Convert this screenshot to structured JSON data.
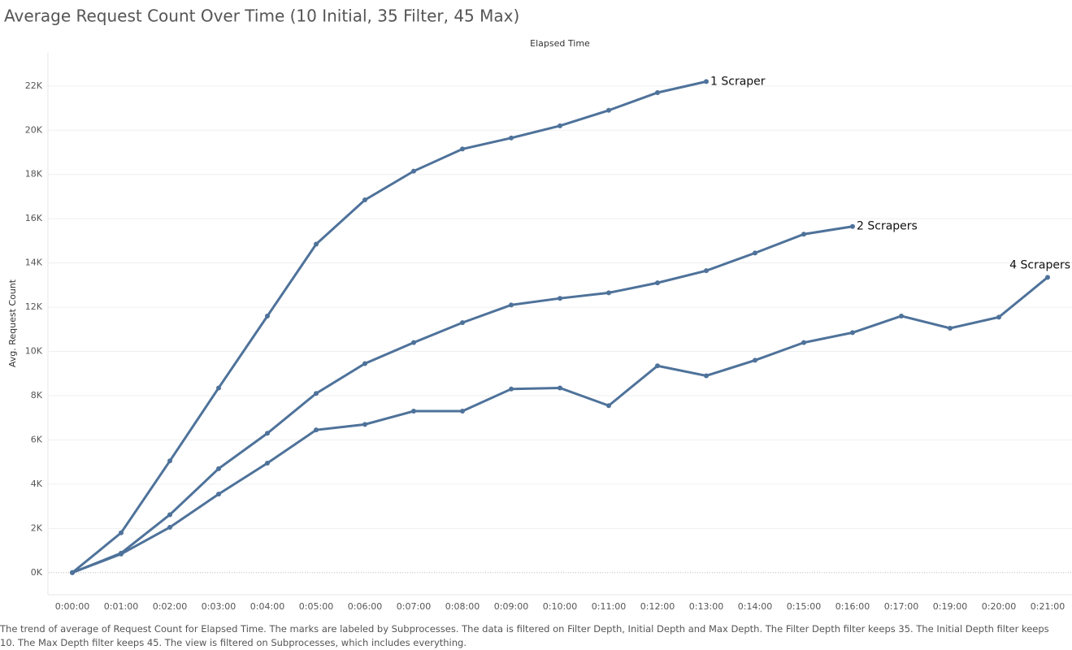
{
  "chart_data": {
    "type": "line",
    "title": "Average Request Count Over Time (10 Initial, 35 Filter, 45 Max)",
    "x_label": "Elapsed Time",
    "y_label": "Avg. Request Count",
    "caption": "The trend of average of Request Count for Elapsed Time.  The marks are labeled by Subprocesses. The data is filtered on Filter Depth, Initial Depth and Max Depth. The Filter Depth filter keeps 35. The Initial Depth filter keeps 10. The Max Depth filter keeps 45. The view is filtered on Subprocesses, which includes everything.",
    "categories": [
      "0:00:00",
      "0:01:00",
      "0:02:00",
      "0:03:00",
      "0:04:00",
      "0:05:00",
      "0:06:00",
      "0:07:00",
      "0:08:00",
      "0:09:00",
      "0:10:00",
      "0:11:00",
      "0:12:00",
      "0:13:00",
      "0:14:00",
      "0:15:00",
      "0:16:00",
      "0:17:00",
      "0:19:00",
      "0:20:00",
      "0:21:00"
    ],
    "series": [
      {
        "name": "1 Scraper",
        "color": "#4e729a",
        "values": [
          0,
          1800,
          5050,
          8350,
          11600,
          14850,
          16850,
          18150,
          19150,
          19650,
          20200,
          20900,
          21700,
          22200,
          null,
          null,
          null,
          null,
          null,
          null,
          null
        ]
      },
      {
        "name": "2 Scrapers",
        "color": "#4e729a",
        "values": [
          0,
          880,
          2620,
          4700,
          6300,
          8100,
          9450,
          10400,
          11300,
          12100,
          12400,
          12650,
          13100,
          13650,
          14450,
          15300,
          15650,
          null,
          null,
          null,
          null
        ]
      },
      {
        "name": "4 Scrapers",
        "color": "#4e729a",
        "values": [
          0,
          840,
          2050,
          3550,
          4950,
          6450,
          6700,
          7300,
          7300,
          8300,
          8350,
          7550,
          9350,
          8900,
          9600,
          10400,
          10850,
          11600,
          11050,
          11550,
          13350
        ]
      }
    ],
    "ylim": [
      -1000,
      23500
    ],
    "yticks": [
      {
        "value": 0,
        "label": "0K"
      },
      {
        "value": 2000,
        "label": "2K"
      },
      {
        "value": 4000,
        "label": "4K"
      },
      {
        "value": 6000,
        "label": "6K"
      },
      {
        "value": 8000,
        "label": "8K"
      },
      {
        "value": 10000,
        "label": "10K"
      },
      {
        "value": 12000,
        "label": "12K"
      },
      {
        "value": 14000,
        "label": "14K"
      },
      {
        "value": 16000,
        "label": "16K"
      },
      {
        "value": 18000,
        "label": "18K"
      },
      {
        "value": 20000,
        "label": "20K"
      },
      {
        "value": 22000,
        "label": "22K"
      }
    ],
    "grid": true
  }
}
